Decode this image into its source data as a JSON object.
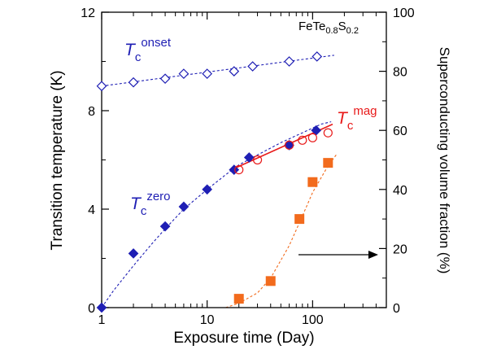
{
  "chart_data": {
    "type": "scatter",
    "xscale": "log",
    "xlabel": "Exposure time (Day)",
    "ylabel": "Transition temperature (K)",
    "y2label": "Superconducting volume fraction (%)",
    "xlim": [
      1,
      500
    ],
    "ylim": [
      0,
      12
    ],
    "y2lim": [
      0,
      100
    ],
    "x_ticks": [
      {
        "value": 1,
        "label": "1"
      },
      {
        "value": 10,
        "label": "10"
      },
      {
        "value": 100,
        "label": "100"
      }
    ],
    "y_ticks": [
      {
        "value": 0,
        "label": "0"
      },
      {
        "value": 4,
        "label": "4"
      },
      {
        "value": 8,
        "label": "8"
      },
      {
        "value": 12,
        "label": "12"
      }
    ],
    "y2_ticks": [
      {
        "value": 0,
        "label": "0"
      },
      {
        "value": 20,
        "label": "20"
      },
      {
        "value": 40,
        "label": "40"
      },
      {
        "value": 60,
        "label": "60"
      },
      {
        "value": 80,
        "label": "80"
      },
      {
        "value": 100,
        "label": "100"
      }
    ],
    "series": [
      {
        "name": "Tc onset",
        "axis": "left",
        "marker": "diamond-open",
        "color": "#1f1fb4",
        "x": [
          1,
          2,
          4,
          6,
          10,
          18,
          27,
          60,
          110
        ],
        "y": [
          9.0,
          9.15,
          9.3,
          9.5,
          9.5,
          9.6,
          9.8,
          10.0,
          10.2
        ],
        "fit": {
          "style": "dashed",
          "x": [
            1,
            160
          ],
          "y": [
            9.0,
            10.25
          ]
        }
      },
      {
        "name": "Tc zero",
        "axis": "left",
        "marker": "diamond-filled",
        "color": "#1f1fb4",
        "x": [
          1,
          2,
          4,
          6,
          10,
          18,
          25,
          60,
          108
        ],
        "y": [
          0,
          2.2,
          3.3,
          4.1,
          4.8,
          5.6,
          6.1,
          6.6,
          7.2
        ],
        "fit": {
          "style": "dashed",
          "x": [
            1,
            1.3,
            2,
            3,
            4,
            6,
            10,
            15,
            20,
            30,
            50,
            80,
            120,
            150
          ],
          "y": [
            0,
            0.7,
            1.7,
            2.6,
            3.2,
            4.0,
            4.8,
            5.4,
            5.8,
            6.2,
            6.7,
            7.1,
            7.45,
            7.55
          ]
        }
      },
      {
        "name": "Tc mag",
        "axis": "left",
        "marker": "circle-open",
        "color": "#e81919",
        "x": [
          20,
          30,
          60,
          80,
          100,
          140
        ],
        "y": [
          5.6,
          6.0,
          6.6,
          6.8,
          6.9,
          7.1
        ],
        "fit": {
          "style": "solid",
          "x": [
            18,
            155
          ],
          "y": [
            5.65,
            7.45
          ]
        }
      },
      {
        "name": "Superconducting volume fraction",
        "axis": "right",
        "marker": "square-filled",
        "color": "#f26b1d",
        "x": [
          20,
          40,
          75,
          100,
          140
        ],
        "y": [
          3,
          9,
          30,
          42.5,
          49
        ],
        "fit": {
          "style": "dashed",
          "x": [
            15,
            20,
            30,
            40,
            60,
            80,
            100,
            140,
            170
          ],
          "y": [
            0,
            1.5,
            5,
            10,
            21,
            31,
            39,
            48,
            52
          ]
        }
      }
    ],
    "annotations": {
      "compound": {
        "prefix": "FeTe",
        "sub1": "0.8",
        "mid": "S",
        "sub2": "0.2"
      },
      "onset_label": {
        "main": "T",
        "sub": "c",
        "sup": "onset"
      },
      "zero_label": {
        "main": "T",
        "sub": "c",
        "sup": "zero"
      },
      "mag_label": {
        "main": "T",
        "sub": "c",
        "sup": "mag"
      },
      "arrow": {
        "direction": "right",
        "points_to_axis": "right"
      }
    },
    "colors": {
      "blue": "#1f1fb4",
      "red": "#e81919",
      "orange": "#f26b1d",
      "axis": "#000000"
    }
  }
}
